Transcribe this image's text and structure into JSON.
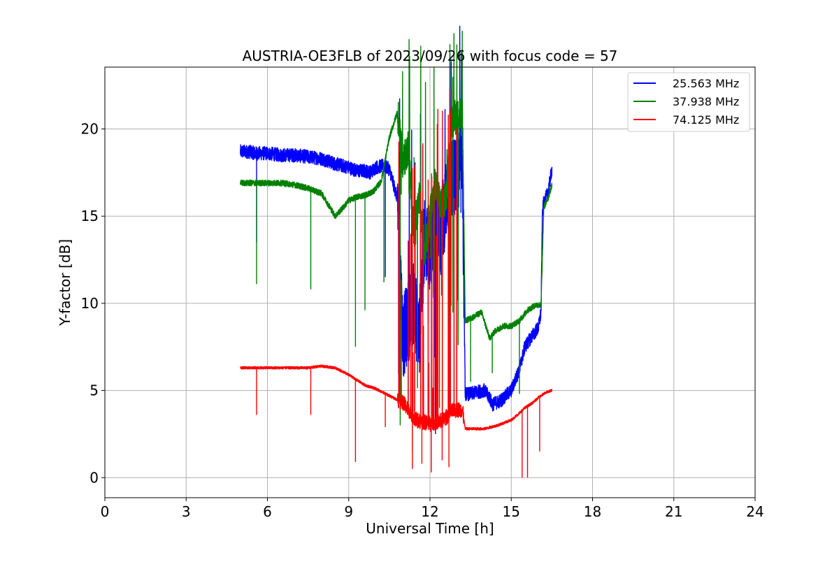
{
  "chart_data": {
    "type": "line",
    "title": "AUSTRIA-OE3FLB of 2023/09/26 with focus code = 57",
    "xlabel": "Universal Time [h]",
    "ylabel": "Y-factor [dB]",
    "xlim": [
      0,
      24
    ],
    "ylim": [
      -1.15,
      23.55
    ],
    "x_ticks": [
      0,
      3,
      6,
      9,
      12,
      15,
      18,
      21,
      24
    ],
    "y_ticks": [
      0,
      5,
      10,
      15,
      20
    ],
    "grid": true,
    "legend_position": "top-right",
    "series": [
      {
        "name": "25.563 MHz",
        "color": "#0000ff",
        "noise": 0.8,
        "x": [
          5.0,
          5.3,
          5.6,
          6.0,
          6.5,
          7.0,
          7.5,
          8.0,
          8.5,
          9.0,
          9.3,
          9.6,
          9.8,
          10.0,
          10.3,
          10.5,
          10.8,
          11.0,
          11.2,
          11.4,
          11.6,
          11.8,
          12.0,
          12.2,
          12.4,
          12.6,
          12.8,
          13.0,
          13.2,
          13.3,
          13.5,
          13.7,
          14.0,
          14.2,
          14.3,
          14.6,
          15.0,
          15.3,
          15.5,
          15.8,
          16.0,
          16.1,
          16.15,
          16.2,
          16.35,
          16.5
        ],
        "y": [
          18.7,
          18.7,
          18.6,
          18.6,
          18.5,
          18.5,
          18.4,
          18.3,
          18.0,
          17.8,
          17.6,
          17.6,
          17.5,
          17.8,
          17.9,
          17.7,
          16.0,
          8.0,
          9.0,
          10.0,
          8.0,
          14.0,
          13.0,
          15.0,
          14.0,
          16.0,
          17.0,
          17.6,
          17.5,
          4.8,
          4.8,
          4.9,
          5.0,
          4.6,
          4.2,
          4.4,
          5.0,
          6.2,
          7.5,
          8.2,
          8.6,
          9.5,
          15.3,
          15.8,
          16.3,
          17.7
        ],
        "dips_x": [
          5.6,
          10.35,
          11.35,
          12.2
        ],
        "dips_y": [
          13.5,
          11.5,
          1.5,
          2.5
        ]
      },
      {
        "name": "37.938 MHz",
        "color": "#008000",
        "noise": 0.35,
        "x": [
          5.0,
          5.5,
          6.0,
          6.5,
          7.0,
          7.5,
          8.0,
          8.5,
          8.8,
          9.0,
          9.3,
          9.6,
          9.9,
          10.2,
          10.5,
          10.8,
          11.0,
          11.2,
          11.4,
          11.6,
          11.8,
          12.0,
          12.2,
          12.4,
          12.6,
          12.8,
          13.0,
          13.2,
          13.3,
          13.6,
          13.9,
          14.2,
          14.4,
          14.7,
          15.0,
          15.3,
          15.6,
          15.9,
          16.1,
          16.2,
          16.35,
          16.5
        ],
        "y": [
          16.9,
          16.9,
          16.9,
          16.9,
          16.8,
          16.6,
          16.3,
          15.0,
          15.5,
          15.9,
          16.1,
          16.2,
          16.4,
          17.0,
          19.5,
          21.0,
          18.0,
          19.0,
          14.0,
          16.0,
          13.0,
          15.0,
          17.0,
          15.5,
          16.0,
          20.5,
          20.8,
          20.9,
          9.0,
          9.2,
          9.5,
          8.0,
          8.4,
          8.7,
          8.7,
          9.0,
          9.6,
          9.9,
          9.9,
          15.5,
          16.0,
          16.8
        ],
        "dips_x": [
          5.6,
          7.6,
          9.25,
          9.6,
          10.3,
          10.9,
          11.35,
          12.35,
          13.5,
          14.3,
          15.3
        ],
        "dips_y": [
          11.1,
          10.8,
          7.5,
          9.6,
          11.2,
          3.0,
          4.5,
          4.0,
          5.5,
          6.0,
          4.8
        ]
      },
      {
        "name": "74.125 MHz",
        "color": "#ff0000",
        "noise": 0.15,
        "x": [
          5.0,
          5.5,
          6.0,
          6.5,
          7.0,
          7.5,
          8.0,
          8.5,
          9.0,
          9.3,
          9.6,
          10.0,
          10.5,
          11.0,
          11.5,
          12.0,
          12.5,
          12.8,
          13.0,
          13.2,
          13.3,
          13.6,
          14.0,
          14.5,
          15.0,
          15.3,
          15.5,
          15.8,
          16.0,
          16.3,
          16.5
        ],
        "y": [
          6.3,
          6.3,
          6.3,
          6.3,
          6.3,
          6.3,
          6.4,
          6.3,
          5.9,
          5.6,
          5.3,
          5.1,
          4.7,
          4.3,
          3.3,
          3.1,
          3.3,
          3.8,
          3.9,
          3.9,
          2.8,
          2.8,
          2.8,
          3.0,
          3.3,
          3.7,
          4.0,
          4.3,
          4.6,
          4.9,
          5.0
        ],
        "dips_x": [
          5.6,
          7.6,
          9.25,
          10.35,
          11.35,
          11.7,
          12.05,
          12.45,
          12.7,
          15.4,
          15.6,
          16.05
        ],
        "dips_y": [
          3.6,
          3.6,
          0.9,
          2.9,
          0.5,
          0.8,
          0.3,
          1.0,
          0.6,
          0.0,
          0.0,
          1.5
        ]
      }
    ]
  }
}
